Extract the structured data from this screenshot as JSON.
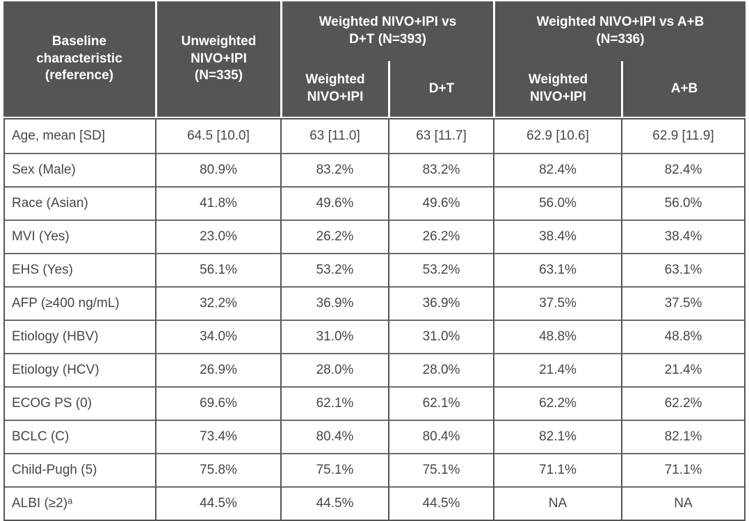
{
  "colors": {
    "header_bg": "#595454",
    "header_text": "#ffffff",
    "body_text": "#4a4545",
    "grid_vertical": "#575252",
    "grid_horizontal": "#6e6969",
    "header_divider": "#ffffff"
  },
  "header": {
    "baseline": "Baseline characteristic (reference)",
    "unweighted": "Unweighted NIVO+IPI (N=335)",
    "group_dt": {
      "title": "Weighted NIVO+IPI vs D+T (N=393)",
      "sub_weighted": "Weighted NIVO+IPI",
      "sub_comparator": "D+T"
    },
    "group_ab": {
      "title": "Weighted NIVO+IPI vs A+B (N=336)",
      "sub_weighted": "Weighted NIVO+IPI",
      "sub_comparator": "A+B"
    }
  },
  "rows": [
    {
      "label": "Age, mean [SD]",
      "values": [
        "64.5 [10.0]",
        "63 [11.0]",
        "63 [11.7]",
        "62.9 [10.6]",
        "62.9 [11.9]"
      ]
    },
    {
      "label": "Sex (Male)",
      "values": [
        "80.9%",
        "83.2%",
        "83.2%",
        "82.4%",
        "82.4%"
      ]
    },
    {
      "label": "Race (Asian)",
      "values": [
        "41.8%",
        "49.6%",
        "49.6%",
        "56.0%",
        "56.0%"
      ]
    },
    {
      "label": "MVI (Yes)",
      "values": [
        "23.0%",
        "26.2%",
        "26.2%",
        "38.4%",
        "38.4%"
      ]
    },
    {
      "label": "EHS (Yes)",
      "values": [
        "56.1%",
        "53.2%",
        "53.2%",
        "63.1%",
        "63.1%"
      ]
    },
    {
      "label": "AFP (≥400 ng/mL)",
      "values": [
        "32.2%",
        "36.9%",
        "36.9%",
        "37.5%",
        "37.5%"
      ]
    },
    {
      "label": "Etiology (HBV)",
      "values": [
        "34.0%",
        "31.0%",
        "31.0%",
        "48.8%",
        "48.8%"
      ]
    },
    {
      "label": "Etiology (HCV)",
      "values": [
        "26.9%",
        "28.0%",
        "28.0%",
        "21.4%",
        "21.4%"
      ]
    },
    {
      "label": "ECOG PS (0)",
      "values": [
        "69.6%",
        "62.1%",
        "62.1%",
        "62.2%",
        "62.2%"
      ]
    },
    {
      "label": "BCLC (C)",
      "values": [
        "73.4%",
        "80.4%",
        "80.4%",
        "82.1%",
        "82.1%"
      ]
    },
    {
      "label": "Child-Pugh (5)",
      "values": [
        "75.8%",
        "75.1%",
        "75.1%",
        "71.1%",
        "71.1%"
      ]
    },
    {
      "label": "ALBI (≥2)ᵃ",
      "values": [
        "44.5%",
        "44.5%",
        "44.5%",
        "NA",
        "NA"
      ]
    }
  ],
  "chart_data": {
    "type": "table",
    "columns": [
      "Baseline characteristic (reference)",
      "Unweighted NIVO+IPI (N=335)",
      "Weighted NIVO+IPI vs D+T (N=393) — Weighted NIVO+IPI",
      "Weighted NIVO+IPI vs D+T (N=393) — D+T",
      "Weighted NIVO+IPI vs A+B (N=336) — Weighted NIVO+IPI",
      "Weighted NIVO+IPI vs A+B (N=336) — A+B"
    ],
    "rows": [
      [
        "Age, mean [SD]",
        "64.5 [10.0]",
        "63 [11.0]",
        "63 [11.7]",
        "62.9 [10.6]",
        "62.9 [11.9]"
      ],
      [
        "Sex (Male)",
        "80.9%",
        "83.2%",
        "83.2%",
        "82.4%",
        "82.4%"
      ],
      [
        "Race (Asian)",
        "41.8%",
        "49.6%",
        "49.6%",
        "56.0%",
        "56.0%"
      ],
      [
        "MVI (Yes)",
        "23.0%",
        "26.2%",
        "26.2%",
        "38.4%",
        "38.4%"
      ],
      [
        "EHS (Yes)",
        "56.1%",
        "53.2%",
        "53.2%",
        "63.1%",
        "63.1%"
      ],
      [
        "AFP (≥400 ng/mL)",
        "32.2%",
        "36.9%",
        "36.9%",
        "37.5%",
        "37.5%"
      ],
      [
        "Etiology (HBV)",
        "34.0%",
        "31.0%",
        "31.0%",
        "48.8%",
        "48.8%"
      ],
      [
        "Etiology (HCV)",
        "26.9%",
        "28.0%",
        "28.0%",
        "21.4%",
        "21.4%"
      ],
      [
        "ECOG PS (0)",
        "69.6%",
        "62.1%",
        "62.1%",
        "62.2%",
        "62.2%"
      ],
      [
        "BCLC (C)",
        "73.4%",
        "80.4%",
        "80.4%",
        "82.1%",
        "82.1%"
      ],
      [
        "Child-Pugh (5)",
        "75.8%",
        "75.1%",
        "75.1%",
        "71.1%",
        "71.1%"
      ],
      [
        "ALBI (≥2)ᵃ",
        "44.5%",
        "44.5%",
        "44.5%",
        "NA",
        "NA"
      ]
    ]
  }
}
